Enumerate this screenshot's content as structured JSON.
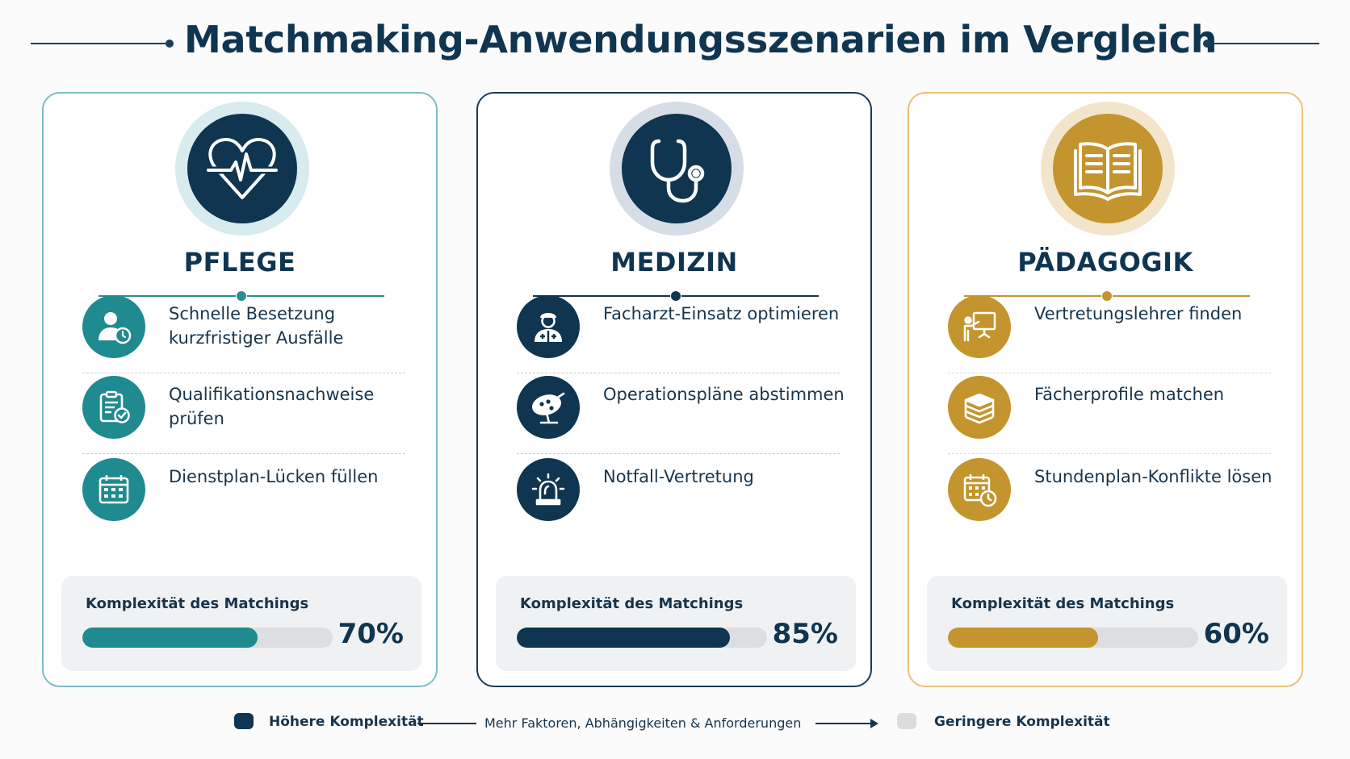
{
  "title": "Matchmaking-Anwendungsszenarien im Vergleich",
  "colors": {
    "navy": "#0f3550",
    "teal": "#1f8a8f",
    "gold": "#c4952e"
  },
  "cards": [
    {
      "title": "PFLEGE",
      "icon": "heart-pulse-icon",
      "items": [
        {
          "icon": "user-clock-icon",
          "text": "Schnelle Besetzung kurzfristiger Ausfälle"
        },
        {
          "icon": "clipboard-check-icon",
          "text": "Qualifikationsnachweise prüfen"
        },
        {
          "icon": "calendar-icon",
          "text": "Dienstplan-Lücken füllen"
        }
      ],
      "meter_label": "Komplexität des Matchings",
      "meter_value": 70,
      "meter_text": "70%"
    },
    {
      "title": "MEDIZIN",
      "icon": "stethoscope-icon",
      "items": [
        {
          "icon": "doctor-icon",
          "text": "Facharzt-Einsatz optimieren"
        },
        {
          "icon": "surgical-lamp-icon",
          "text": "Operationspläne abstimmen"
        },
        {
          "icon": "emergency-siren-icon",
          "text": "Notfall-Vertretung"
        }
      ],
      "meter_label": "Komplexität des Matchings",
      "meter_value": 85,
      "meter_text": "85%"
    },
    {
      "title": "PÄDAGOGIK",
      "icon": "open-book-icon",
      "items": [
        {
          "icon": "teacher-board-icon",
          "text": "Vertretungslehrer finden"
        },
        {
          "icon": "book-stack-icon",
          "text": "Fächerprofile matchen"
        },
        {
          "icon": "calendar-clock-icon",
          "text": "Stundenplan-Konflikte lösen"
        }
      ],
      "meter_label": "Komplexität des Matchings",
      "meter_value": 60,
      "meter_text": "60%"
    }
  ],
  "legend": {
    "high": "Höhere Komplexität",
    "middle": "Mehr Faktoren, Abhängigkeiten & Anforderungen",
    "low": "Geringere Komplexität"
  }
}
